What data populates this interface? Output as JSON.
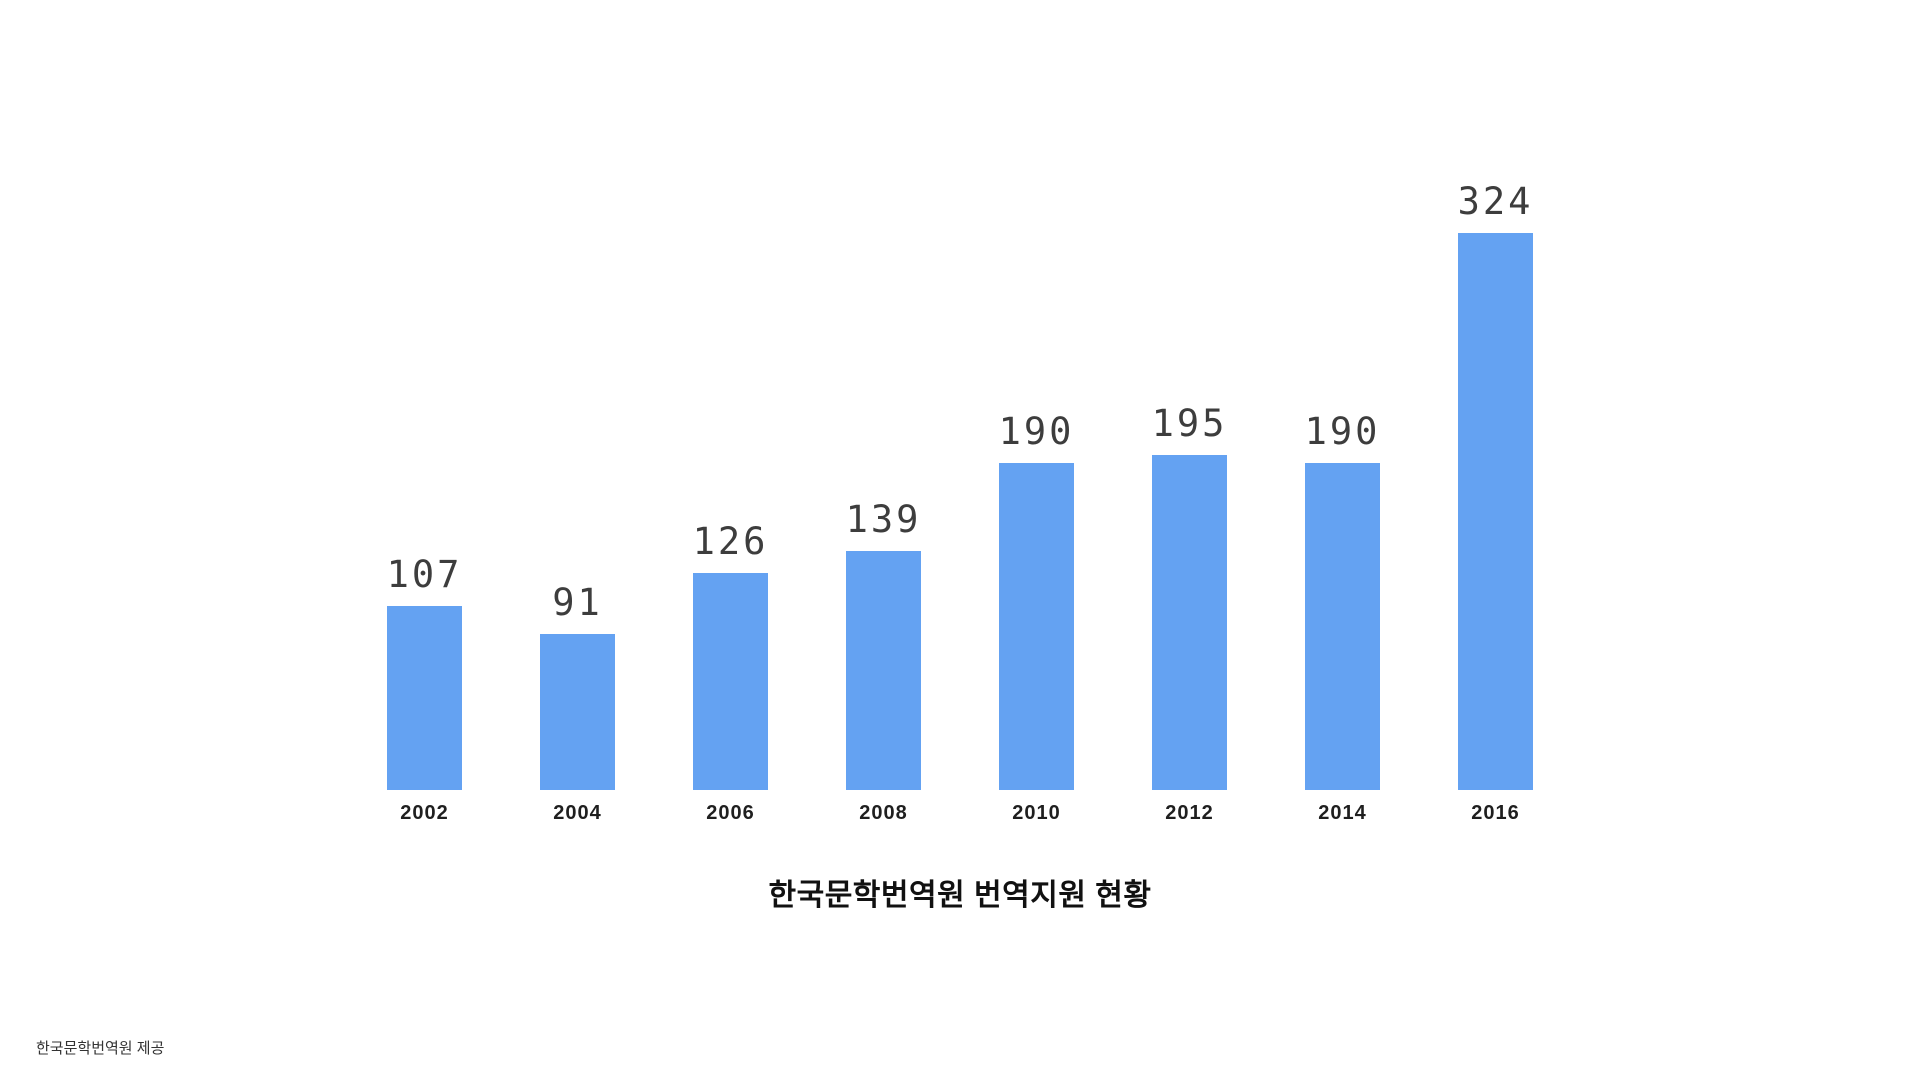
{
  "chart_data": {
    "type": "bar",
    "categories": [
      "2002",
      "2004",
      "2006",
      "2008",
      "2010",
      "2012",
      "2014",
      "2016"
    ],
    "values": [
      107,
      91,
      126,
      139,
      190,
      195,
      190,
      324
    ],
    "title": "한국문학번역원 번역지원 현황",
    "xlabel": "",
    "ylabel": "",
    "ylim": [
      0,
      340
    ],
    "grid": false,
    "legend": false,
    "bar_color": "#64a2f2",
    "value_label_color": "#3d3d3d",
    "source_credit": "한국문학번역원 제공"
  }
}
